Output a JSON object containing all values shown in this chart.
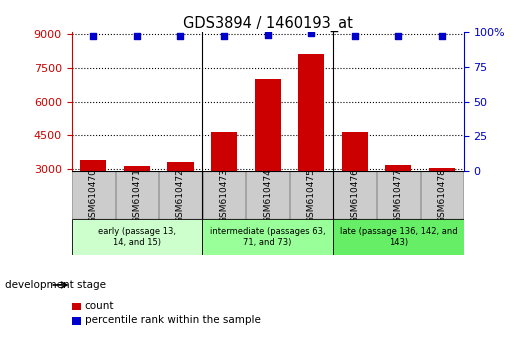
{
  "title": "GDS3894 / 1460193_at",
  "samples": [
    "GSM610470",
    "GSM610471",
    "GSM610472",
    "GSM610473",
    "GSM610474",
    "GSM610475",
    "GSM610476",
    "GSM610477",
    "GSM610478"
  ],
  "counts": [
    3400,
    3150,
    3300,
    4650,
    7000,
    8100,
    4650,
    3200,
    3050
  ],
  "percentile_ranks": [
    97,
    97,
    97,
    97,
    98,
    99,
    97,
    97,
    97
  ],
  "bar_color": "#cc0000",
  "dot_color": "#0000cc",
  "ylim_left": [
    2900,
    9100
  ],
  "yticks_left": [
    3000,
    4500,
    6000,
    7500,
    9000
  ],
  "ylim_right": [
    0,
    100
  ],
  "yticks_right": [
    0,
    25,
    50,
    75,
    100
  ],
  "groups": [
    {
      "label": "early (passage 13,\n14, and 15)",
      "cols": [
        0,
        1,
        2
      ],
      "color": "#ccffcc"
    },
    {
      "label": "intermediate (passages 63,\n71, and 73)",
      "cols": [
        3,
        4,
        5
      ],
      "color": "#99ff99"
    },
    {
      "label": "late (passage 136, 142, and\n143)",
      "cols": [
        6,
        7,
        8
      ],
      "color": "#66ee66"
    }
  ],
  "group_boundaries": [
    2.5,
    5.5
  ],
  "dev_stage_label": "development stage",
  "legend_count_label": "count",
  "legend_pct_label": "percentile rank within the sample",
  "sample_box_color": "#cccccc",
  "plot_bg_color": "#ffffff",
  "fig_bg_color": "#ffffff"
}
